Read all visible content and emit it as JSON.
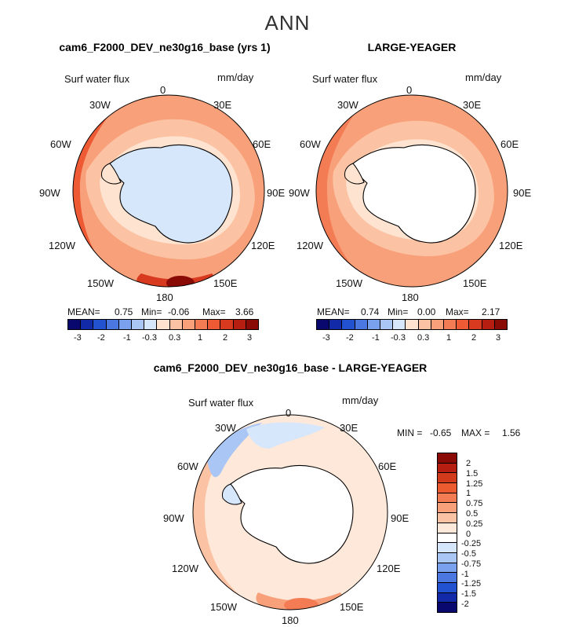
{
  "figure_title": "ANN",
  "panels": [
    {
      "title": "cam6_F2000_DEV_ne30g16_base (yrs 1)",
      "variable": "Surf water flux",
      "units": "mm/day",
      "lon_labels": [
        "0",
        "30E",
        "60E",
        "90E",
        "120E",
        "150E",
        "180",
        "150W",
        "120W",
        "90W",
        "60W",
        "30W"
      ],
      "stats": {
        "mean_label": "MEAN=",
        "mean": "0.75",
        "min_label": "Min=",
        "min": "-0.06",
        "max_label": "Max=",
        "max": "3.66"
      },
      "colorbar_labels": [
        "-3",
        "-2",
        "-1",
        "-0.3",
        "0.3",
        "1",
        "2",
        "3"
      ]
    },
    {
      "title": "LARGE-YEAGER",
      "variable": "Surf water flux",
      "units": "mm/day",
      "lon_labels": [
        "0",
        "30E",
        "60E",
        "90E",
        "120E",
        "150E",
        "180",
        "150W",
        "120W",
        "90W",
        "60W",
        "30W"
      ],
      "stats": {
        "mean_label": "MEAN=",
        "mean": "0.74",
        "min_label": "Min=",
        "min": "0.00",
        "max_label": "Max=",
        "max": "2.17"
      },
      "colorbar_labels": [
        "-3",
        "-2",
        "-1",
        "-0.3",
        "0.3",
        "1",
        "2",
        "3"
      ]
    },
    {
      "title": "cam6_F2000_DEV_ne30g16_base - LARGE-YEAGER",
      "variable": "Surf water flux",
      "units": "mm/day",
      "lon_labels": [
        "0",
        "30E",
        "60E",
        "90E",
        "120E",
        "150E",
        "180",
        "150W",
        "120W",
        "90W",
        "60W",
        "30W"
      ],
      "stats": {
        "min_label": "MIN =",
        "min": "-0.65",
        "max_label": "MAX =",
        "max": "1.56"
      },
      "colorbar_labels": [
        "2",
        "1.5",
        "1.25",
        "1",
        "0.75",
        "0.5",
        "0.25",
        "0",
        "-0.25",
        "-0.5",
        "-0.75",
        "-1",
        "-1.25",
        "-1.5",
        "-2"
      ]
    }
  ],
  "colors": {
    "abs_scale": [
      "#08086e",
      "#1229a8",
      "#2352d1",
      "#4a78e0",
      "#7aa1ee",
      "#aac6f5",
      "#d6e6fb",
      "#fde3d0",
      "#fbc3a3",
      "#f8a07a",
      "#f47c55",
      "#ee5a34",
      "#d83a1f",
      "#b51e10",
      "#8a0a05"
    ],
    "diff_scale": [
      "#8a0a05",
      "#b51e10",
      "#d23a1c",
      "#ec5a30",
      "#f47c55",
      "#f8a07a",
      "#fbc3a3",
      "#fde8da",
      "#ffffff",
      "#d6e6fb",
      "#aac6f5",
      "#7aa1ee",
      "#4a78e0",
      "#2352d1",
      "#1229a8",
      "#08086e"
    ],
    "land": "#ffffff",
    "coast": "#000000"
  },
  "map_features": [
    {
      "panel": 0,
      "ice_shelf_fill": "#d6e6fb"
    },
    {
      "panel": 1,
      "ice_shelf_fill": "#ffffff"
    },
    {
      "panel": 2,
      "ice_shelf_fill": "#ffffff"
    }
  ]
}
